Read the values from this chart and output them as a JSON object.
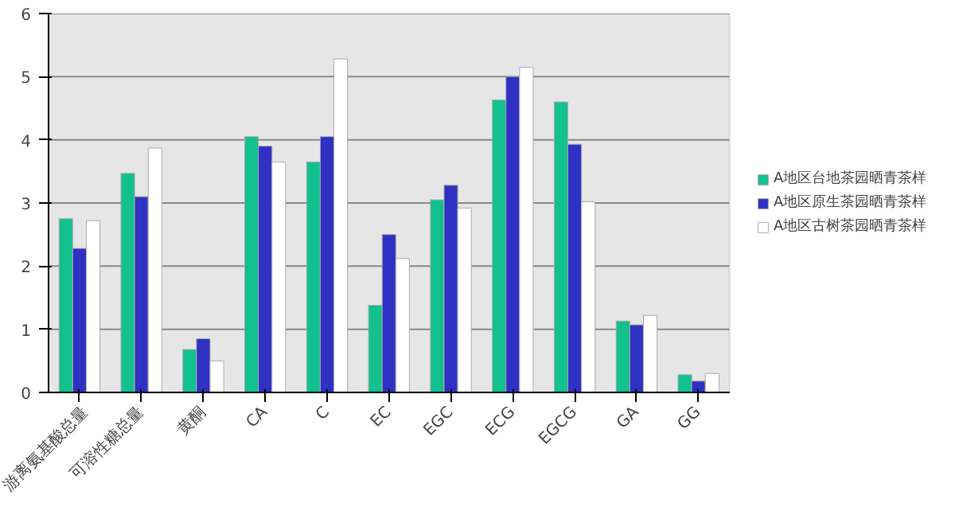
{
  "chart_data": {
    "type": "bar",
    "categories": [
      "游离氨基酸总量",
      "可溶性糖总量",
      "黄酮",
      "CA",
      "C",
      "EC",
      "EGC",
      "ECG",
      "EGCG",
      "GA",
      "GG"
    ],
    "series": [
      {
        "name": "A地区台地茶园晒青茶样",
        "color": "#13c08f",
        "values": [
          2.75,
          3.47,
          0.68,
          4.05,
          3.65,
          1.38,
          3.05,
          4.63,
          4.6,
          1.13,
          0.28
        ]
      },
      {
        "name": "A地区原生茶园晒青茶样",
        "color": "#2e31c2",
        "values": [
          2.28,
          3.1,
          0.85,
          3.9,
          4.05,
          2.5,
          3.28,
          5.0,
          3.93,
          1.07,
          0.18
        ]
      },
      {
        "name": "A地区古树茶园晒青茶样",
        "color": "#ffffff",
        "values": [
          2.72,
          3.87,
          0.5,
          3.65,
          5.28,
          2.12,
          2.92,
          5.15,
          3.02,
          1.22,
          0.3
        ]
      }
    ],
    "ylim": [
      0,
      6
    ],
    "yticks": [
      0,
      1,
      2,
      3,
      4,
      5,
      6
    ],
    "grid": "y",
    "legend": "right"
  }
}
